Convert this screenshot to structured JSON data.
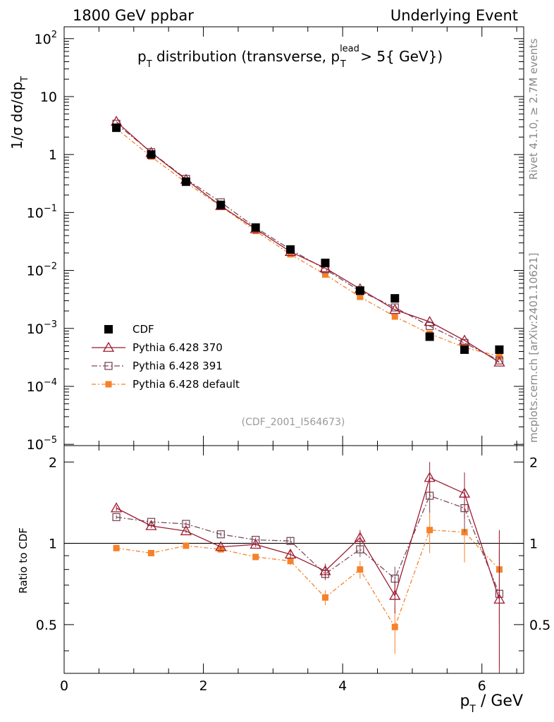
{
  "header": {
    "left": "1800 GeV ppbar",
    "right": "Underlying Event"
  },
  "main_plot": {
    "title_prefix": "p",
    "title_sub": "T",
    "title_mid": " distribution (transverse, p",
    "title_sup": "lead",
    "title_sub2": "T",
    "title_suffix": " > 5{ GeV})",
    "ylabel_prefix": "1/σ  dσ/dp",
    "ylabel_sub": "T",
    "watermark": "(CDF_2001_I564673)"
  },
  "ratio_plot": {
    "ylabel": "Ratio to CDF",
    "xlabel_prefix": "p",
    "xlabel_sub": "T",
    "xlabel_suffix": " / GeV"
  },
  "side_notes": {
    "rivet": "Rivet 4.1.0, ≥ 2.7M events",
    "mcplots": "mcplots.cern.ch [arXiv:2401.10621]"
  },
  "legend": [
    {
      "label": "CDF",
      "color": "#000000",
      "marker": "filled-square"
    },
    {
      "label": "Pythia 6.428 370",
      "color": "#9b1b30",
      "marker": "open-triangle"
    },
    {
      "label": "Pythia 6.428 391",
      "color": "#7a4a5a",
      "marker": "open-square"
    },
    {
      "label": "Pythia 6.428 default",
      "color": "#f5822a",
      "marker": "filled-square-small"
    }
  ],
  "chart_data": [
    {
      "type": "scatter",
      "title": "pT distribution (transverse, pT lead > 5{ GeV})",
      "xlabel": "pT / GeV",
      "ylabel": "1/σ dσ/dpT",
      "yscale": "log",
      "xlim": [
        0,
        6.6
      ],
      "ylim": [
        9.5e-06,
        160
      ],
      "y_ticks": [
        {
          "value": 1e-05,
          "label": "10^-5"
        },
        {
          "value": 0.0001,
          "label": "10^-4"
        },
        {
          "value": 0.001,
          "label": "10^-3"
        },
        {
          "value": 0.01,
          "label": "10^-2"
        },
        {
          "value": 0.1,
          "label": "10^-1"
        },
        {
          "value": 1,
          "label": "1"
        },
        {
          "value": 10,
          "label": "10"
        },
        {
          "value": 100,
          "label": "10^2"
        }
      ],
      "x": [
        0.75,
        1.25,
        1.75,
        2.25,
        2.75,
        3.25,
        3.75,
        4.25,
        4.75,
        5.25,
        5.75,
        6.25
      ],
      "series": [
        {
          "name": "CDF",
          "values": [
            2.9,
            1.0,
            0.34,
            0.135,
            0.055,
            0.023,
            0.0135,
            0.0045,
            0.0033,
            0.00072,
            0.00043,
            0.00043
          ]
        },
        {
          "name": "Pythia 6.428 370",
          "values": [
            3.7,
            1.08,
            0.37,
            0.13,
            0.052,
            0.021,
            0.011,
            0.0048,
            0.0021,
            0.0013,
            0.00062,
            0.00026
          ]
        },
        {
          "name": "Pythia 6.428 391",
          "values": [
            3.4,
            1.1,
            0.38,
            0.15,
            0.055,
            0.023,
            0.0105,
            0.0044,
            0.0023,
            0.0011,
            0.00056,
            0.00028
          ]
        },
        {
          "name": "Pythia 6.428 default",
          "values": [
            2.8,
            0.92,
            0.33,
            0.128,
            0.048,
            0.019,
            0.0085,
            0.0035,
            0.0016,
            0.00081,
            0.00047,
            0.00033
          ]
        }
      ]
    },
    {
      "type": "line",
      "title": "Ratio to CDF",
      "xlabel": "pT / GeV",
      "ylabel": "Ratio to CDF",
      "xlim": [
        0,
        6.6
      ],
      "ylim": [
        0.33,
        2.3
      ],
      "x_ticks": [
        0,
        2,
        4,
        6
      ],
      "y_ticks": [
        0.5,
        1,
        2
      ],
      "reference_line": 1,
      "x": [
        0.75,
        1.25,
        1.75,
        2.25,
        2.75,
        3.25,
        3.75,
        4.25,
        4.75,
        5.25,
        5.75,
        6.25
      ],
      "series": [
        {
          "name": "Pythia 6.428 370",
          "values": [
            1.35,
            1.16,
            1.11,
            0.97,
            0.99,
            0.91,
            0.79,
            1.05,
            0.64,
            1.75,
            1.53,
            0.62
          ],
          "errors": [
            0.03,
            0.02,
            0.02,
            0.02,
            0.02,
            0.03,
            0.05,
            0.07,
            0.09,
            0.25,
            0.3,
            0.5
          ]
        },
        {
          "name": "Pythia 6.428 391",
          "values": [
            1.25,
            1.2,
            1.18,
            1.08,
            1.03,
            1.02,
            0.77,
            0.95,
            0.74,
            1.5,
            1.35,
            0.65
          ],
          "errors": [
            0.02,
            0.02,
            0.02,
            0.02,
            0.02,
            0.03,
            0.04,
            0.06,
            0.08,
            0.2,
            0.25,
            0.3
          ]
        },
        {
          "name": "Pythia 6.428 default",
          "values": [
            0.96,
            0.92,
            0.98,
            0.95,
            0.89,
            0.86,
            0.63,
            0.8,
            0.49,
            1.12,
            1.1,
            0.8
          ],
          "errors": [
            0.01,
            0.01,
            0.02,
            0.02,
            0.02,
            0.03,
            0.04,
            0.06,
            0.1,
            0.2,
            0.25,
            0.3
          ]
        }
      ]
    }
  ]
}
